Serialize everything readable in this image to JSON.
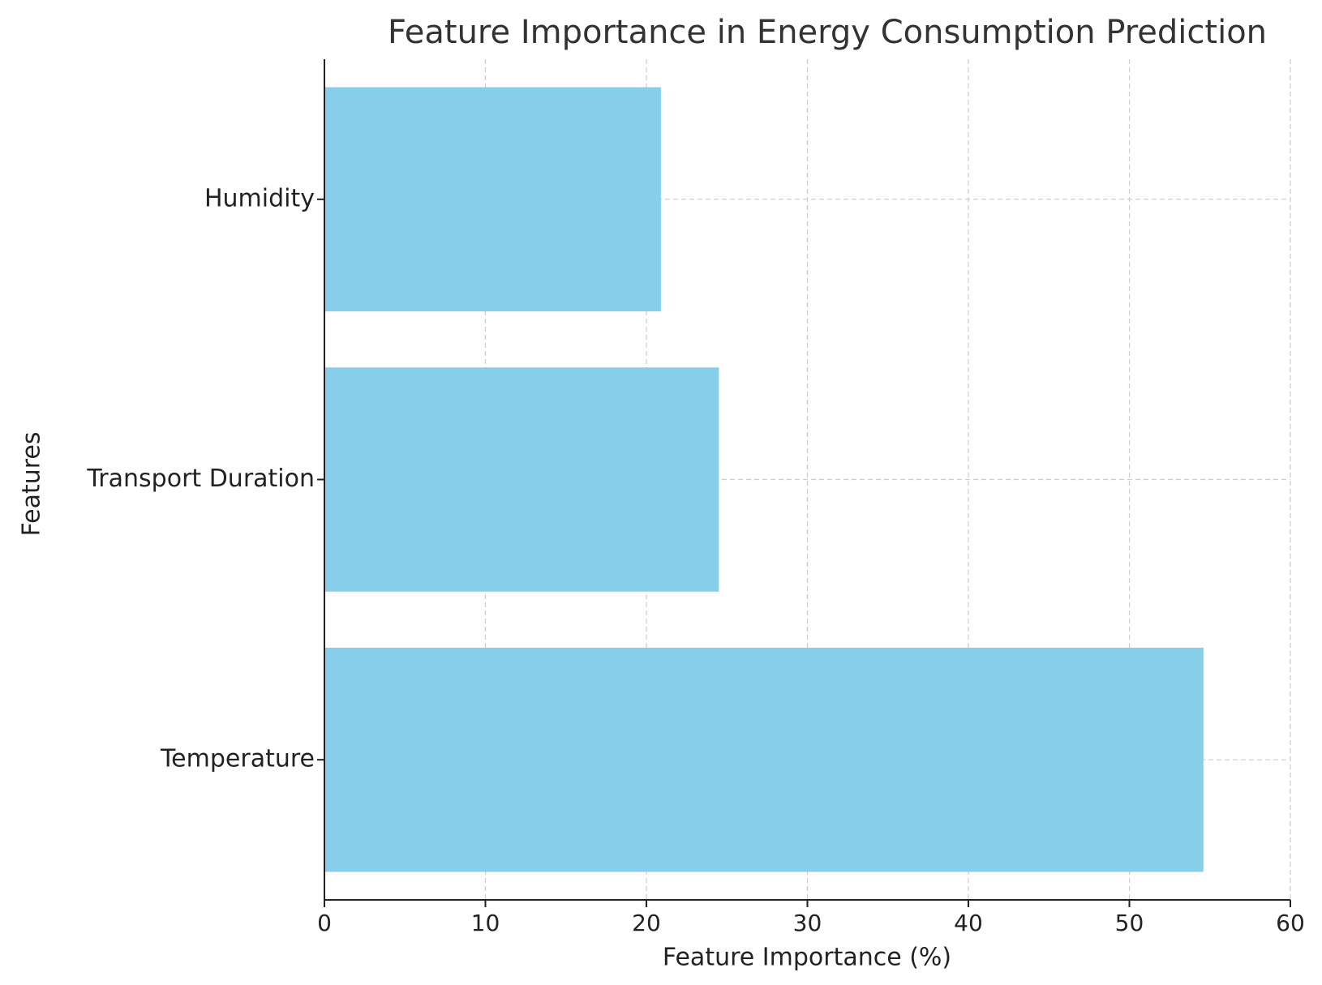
{
  "chart_data": {
    "type": "barh",
    "title": "Feature Importance in Energy Consumption Prediction",
    "x_label": "Feature Importance (%)",
    "y_label": "Features",
    "categories": [
      "Temperature",
      "Transport Duration",
      "Humidity"
    ],
    "values": [
      54.6,
      24.5,
      20.9
    ],
    "color": "#87ceeb",
    "xlim": [
      0,
      60
    ],
    "xticks": [
      0,
      10,
      20,
      30,
      40,
      50,
      60
    ],
    "grid": true
  }
}
